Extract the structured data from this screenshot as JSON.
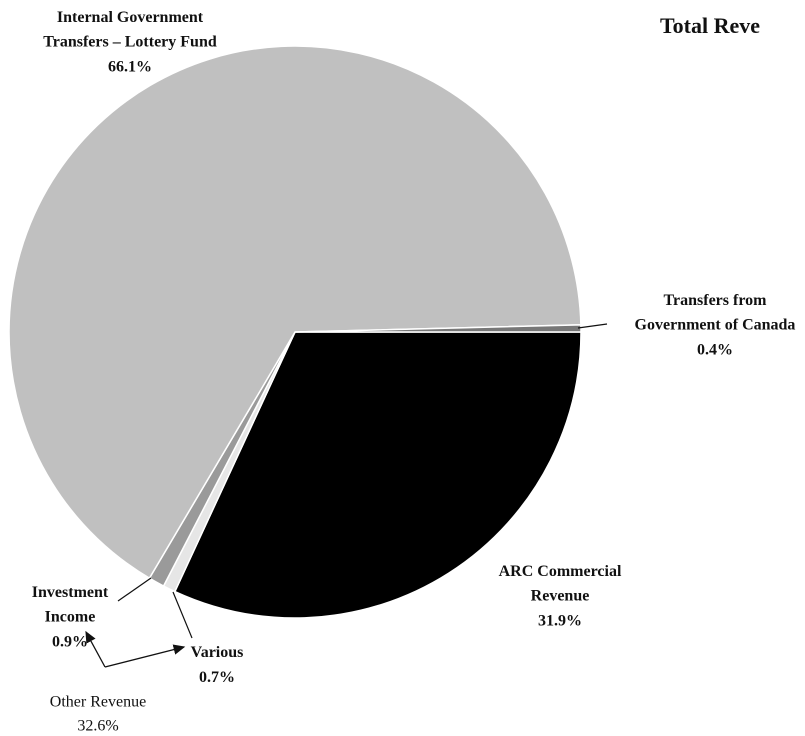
{
  "chart_data": {
    "type": "pie",
    "title": "Total Reve",
    "categories": [
      "ARC Commercial Revenue",
      "Various",
      "Investment Income",
      "Internal Government Transfers – Lottery Fund",
      "Transfers from Government of Canada"
    ],
    "values": [
      31.9,
      0.7,
      0.9,
      66.1,
      0.4
    ],
    "value_labels": [
      "31.9%",
      "0.7%",
      "0.9%",
      "66.1%",
      "0.4%"
    ],
    "colors": [
      "#000000",
      "#e6e6e6",
      "#9a9a9a",
      "#c0c0c0",
      "#777777"
    ],
    "annotations": [
      {
        "text": "Other Revenue",
        "value_label": "32.6%"
      }
    ]
  }
}
